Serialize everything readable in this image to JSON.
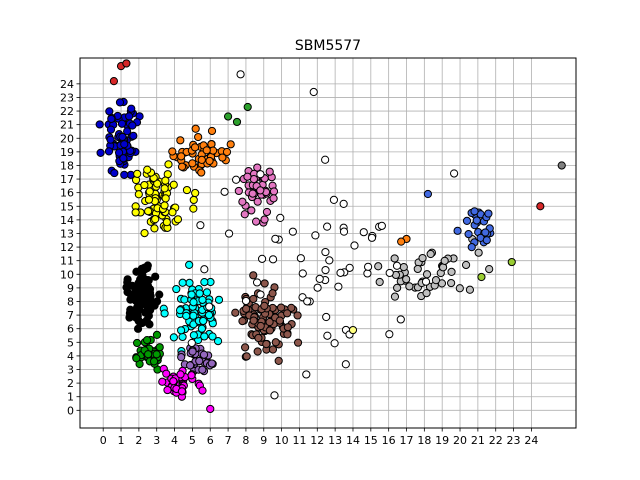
{
  "chart_data": {
    "type": "scatter",
    "title": "SBM5577",
    "xlabel": "",
    "ylabel": "",
    "xlim": [
      -1.3,
      26.5
    ],
    "ylim": [
      -1.3,
      25.9
    ],
    "grid": true,
    "x_ticks": [
      "0",
      "1",
      "2",
      "3",
      "4",
      "5",
      "6",
      "7",
      "8",
      "9",
      "10",
      "11",
      "12",
      "13",
      "14",
      "15",
      "16",
      "17",
      "18",
      "19",
      "20",
      "21",
      "22",
      "23",
      "24"
    ],
    "y_ticks": [
      "0",
      "1",
      "2",
      "3",
      "4",
      "5",
      "6",
      "7",
      "8",
      "9",
      "10",
      "11",
      "12",
      "13",
      "14",
      "15",
      "16",
      "17",
      "18",
      "19",
      "20",
      "21",
      "22",
      "23",
      "24"
    ],
    "clusters": [
      {
        "color": "#0000cc",
        "center": [
          1.0,
          20.0
        ],
        "spread": [
          0.8,
          2.0
        ],
        "count": 70
      },
      {
        "color": "#ff7f0e",
        "center": [
          5.5,
          19.0
        ],
        "spread": [
          1.3,
          1.2
        ],
        "count": 50
      },
      {
        "color": "#ffff00",
        "center": [
          3.2,
          15.5
        ],
        "spread": [
          1.0,
          2.0
        ],
        "count": 80
      },
      {
        "color": "#e377c2",
        "center": [
          8.5,
          16.0
        ],
        "spread": [
          1.0,
          1.6
        ],
        "count": 45
      },
      {
        "color": "#000000",
        "center": [
          2.2,
          8.5
        ],
        "spread": [
          0.7,
          2.0
        ],
        "count": 90
      },
      {
        "color": "#00ffff",
        "center": [
          5.2,
          7.0
        ],
        "spread": [
          1.2,
          2.0
        ],
        "count": 80
      },
      {
        "color": "#8c564b",
        "center": [
          9.0,
          6.5
        ],
        "spread": [
          1.6,
          2.2
        ],
        "count": 90
      },
      {
        "color": "#009900",
        "center": [
          2.6,
          4.2
        ],
        "spread": [
          0.5,
          1.0
        ],
        "count": 40
      },
      {
        "color": "#9467bd",
        "center": [
          5.3,
          3.8
        ],
        "spread": [
          0.9,
          0.8
        ],
        "count": 30
      },
      {
        "color": "#ff00ff",
        "center": [
          4.3,
          2.0
        ],
        "spread": [
          1.0,
          0.8
        ],
        "count": 35
      },
      {
        "color": "#c0c0c0",
        "center": [
          18.5,
          10.0
        ],
        "spread": [
          2.5,
          2.0
        ],
        "count": 45
      },
      {
        "color": "#4169e1",
        "center": [
          21.0,
          13.5
        ],
        "spread": [
          0.9,
          1.5
        ],
        "count": 25
      },
      {
        "color": "#ffffff",
        "center": [
          12.0,
          11.0
        ],
        "spread": [
          6.0,
          6.0
        ],
        "count": 60
      }
    ],
    "points": [
      {
        "x": 0.6,
        "y": 24.2,
        "color": "#d62728"
      },
      {
        "x": 1.0,
        "y": 25.3,
        "color": "#d62728"
      },
      {
        "x": 1.3,
        "y": 25.5,
        "color": "#d62728"
      },
      {
        "x": 7.7,
        "y": 24.7,
        "color": "#ffffff"
      },
      {
        "x": 8.1,
        "y": 22.3,
        "color": "#2ca02c"
      },
      {
        "x": 7.0,
        "y": 21.6,
        "color": "#2ca02c"
      },
      {
        "x": 7.5,
        "y": 21.2,
        "color": "#2ca02c"
      },
      {
        "x": 11.8,
        "y": 23.4,
        "color": "#ffffff"
      },
      {
        "x": 17.0,
        "y": 12.6,
        "color": "#ff7f0e"
      },
      {
        "x": 16.7,
        "y": 12.4,
        "color": "#ff7f0e"
      },
      {
        "x": 18.2,
        "y": 15.9,
        "color": "#4169e1"
      },
      {
        "x": 24.5,
        "y": 15.0,
        "color": "#d62728"
      },
      {
        "x": 21.2,
        "y": 9.8,
        "color": "#9acd32"
      },
      {
        "x": 22.9,
        "y": 10.9,
        "color": "#9acd32"
      },
      {
        "x": 14.0,
        "y": 5.9,
        "color": "#ffff80"
      },
      {
        "x": 25.7,
        "y": 18.0,
        "color": "#808080"
      },
      {
        "x": 6.0,
        "y": 0.1,
        "color": "#ff00ff"
      },
      {
        "x": 9.6,
        "y": 1.1,
        "color": "#ffffff"
      }
    ]
  }
}
